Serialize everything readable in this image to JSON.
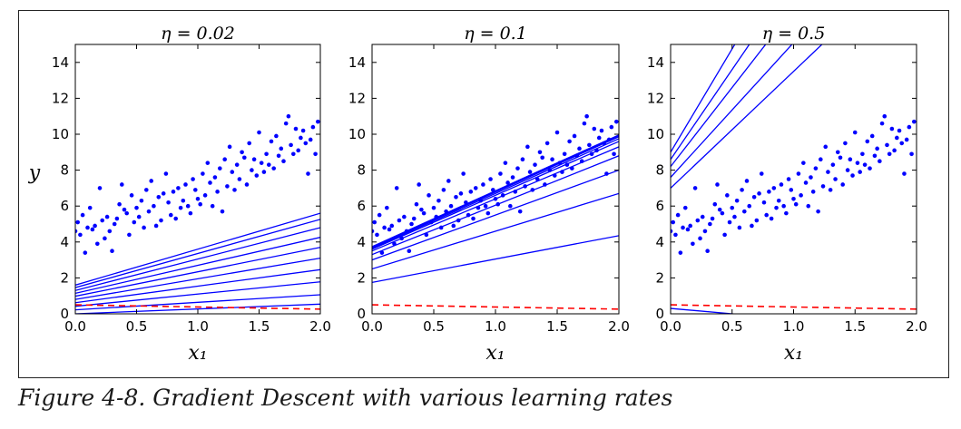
{
  "caption": "Figure 4-8. Gradient Descent with various learning rates",
  "colors": {
    "points": "#0000ff",
    "lines": "#0000ff",
    "prediction": "#ff0000",
    "axes": "#000000"
  },
  "chart_data": [
    {
      "type": "scatter",
      "title": "η = 0.02",
      "xlabel": "x₁",
      "ylabel": "y",
      "xlim": [
        0,
        2
      ],
      "ylim": [
        0,
        15
      ],
      "xticks": [
        "0.0",
        "0.5",
        "1.0",
        "1.5",
        "2.0"
      ],
      "yticks": [
        "0",
        "2",
        "4",
        "6",
        "8",
        "10",
        "12",
        "14"
      ],
      "grid": false,
      "lines": [
        {
          "intercept": 0.0,
          "slope": 0.27
        },
        {
          "intercept": 0.22,
          "slope": 0.42
        },
        {
          "intercept": 0.42,
          "slope": 0.68
        },
        {
          "intercept": 0.62,
          "slope": 0.92
        },
        {
          "intercept": 0.8,
          "slope": 1.15
        },
        {
          "intercept": 0.98,
          "slope": 1.36
        },
        {
          "intercept": 1.14,
          "slope": 1.56
        },
        {
          "intercept": 1.3,
          "slope": 1.75
        },
        {
          "intercept": 1.46,
          "slope": 1.9
        },
        {
          "intercept": 1.6,
          "slope": 2.0
        }
      ],
      "prediction_line": {
        "intercept": 0.5,
        "slope": -0.12
      }
    },
    {
      "type": "scatter",
      "title": "η = 0.1",
      "xlabel": "x₁",
      "ylabel": "",
      "xlim": [
        0,
        2
      ],
      "ylim": [
        0,
        15
      ],
      "xticks": [
        "0.0",
        "0.5",
        "1.0",
        "1.5",
        "2.0"
      ],
      "yticks": [
        "0",
        "2",
        "4",
        "6",
        "8",
        "10",
        "12",
        "14"
      ],
      "grid": false,
      "lines": [
        {
          "intercept": 1.75,
          "slope": 1.3
        },
        {
          "intercept": 2.5,
          "slope": 2.1
        },
        {
          "intercept": 3.0,
          "slope": 2.5
        },
        {
          "intercept": 3.3,
          "slope": 2.75
        },
        {
          "intercept": 3.5,
          "slope": 2.9
        },
        {
          "intercept": 3.6,
          "slope": 3.0
        },
        {
          "intercept": 3.65,
          "slope": 3.05
        },
        {
          "intercept": 3.7,
          "slope": 3.08
        },
        {
          "intercept": 3.72,
          "slope": 3.1
        },
        {
          "intercept": 3.74,
          "slope": 3.11
        }
      ],
      "prediction_line": {
        "intercept": 0.5,
        "slope": -0.12
      }
    },
    {
      "type": "scatter",
      "title": "η = 0.5",
      "xlabel": "x₁",
      "ylabel": "",
      "xlim": [
        0,
        2
      ],
      "ylim": [
        0,
        15
      ],
      "xticks": [
        "0.0",
        "0.5",
        "1.0",
        "1.5",
        "2.0"
      ],
      "yticks": [
        "0",
        "2",
        "4",
        "6",
        "8",
        "10",
        "12",
        "14"
      ],
      "grid": false,
      "lines": [
        {
          "intercept": 0.3,
          "slope": -0.6
        },
        {
          "intercept": 7.0,
          "slope": 6.5
        },
        {
          "intercept": 7.6,
          "slope": 7.5
        },
        {
          "intercept": 8.2,
          "slope": 8.8
        },
        {
          "intercept": 8.6,
          "slope": 10.0
        },
        {
          "intercept": 9.0,
          "slope": 11.5
        }
      ],
      "prediction_line": {
        "intercept": 0.5,
        "slope": -0.12
      }
    }
  ],
  "scatter_points": [
    [
      0.0,
      4.6
    ],
    [
      0.02,
      5.1
    ],
    [
      0.04,
      4.4
    ],
    [
      0.06,
      5.5
    ],
    [
      0.08,
      3.4
    ],
    [
      0.1,
      4.8
    ],
    [
      0.12,
      5.9
    ],
    [
      0.14,
      4.7
    ],
    [
      0.16,
      4.9
    ],
    [
      0.18,
      3.9
    ],
    [
      0.2,
      7.0
    ],
    [
      0.22,
      5.2
    ],
    [
      0.24,
      4.2
    ],
    [
      0.26,
      5.4
    ],
    [
      0.28,
      4.6
    ],
    [
      0.3,
      3.5
    ],
    [
      0.32,
      5.0
    ],
    [
      0.34,
      5.3
    ],
    [
      0.36,
      6.1
    ],
    [
      0.38,
      7.2
    ],
    [
      0.4,
      5.8
    ],
    [
      0.42,
      5.6
    ],
    [
      0.44,
      4.4
    ],
    [
      0.46,
      6.6
    ],
    [
      0.48,
      5.1
    ],
    [
      0.5,
      5.9
    ],
    [
      0.52,
      5.4
    ],
    [
      0.54,
      6.3
    ],
    [
      0.56,
      4.8
    ],
    [
      0.58,
      6.9
    ],
    [
      0.6,
      5.7
    ],
    [
      0.62,
      7.4
    ],
    [
      0.64,
      6.0
    ],
    [
      0.66,
      4.9
    ],
    [
      0.68,
      6.5
    ],
    [
      0.7,
      5.2
    ],
    [
      0.72,
      6.7
    ],
    [
      0.74,
      7.8
    ],
    [
      0.76,
      6.2
    ],
    [
      0.78,
      5.5
    ],
    [
      0.8,
      6.8
    ],
    [
      0.82,
      5.3
    ],
    [
      0.84,
      7.0
    ],
    [
      0.86,
      5.9
    ],
    [
      0.88,
      6.3
    ],
    [
      0.9,
      7.2
    ],
    [
      0.92,
      6.0
    ],
    [
      0.94,
      5.6
    ],
    [
      0.96,
      7.5
    ],
    [
      0.98,
      6.9
    ],
    [
      1.0,
      6.4
    ],
    [
      1.02,
      6.1
    ],
    [
      1.04,
      7.8
    ],
    [
      1.06,
      6.6
    ],
    [
      1.08,
      8.4
    ],
    [
      1.1,
      7.3
    ],
    [
      1.12,
      6.0
    ],
    [
      1.14,
      7.6
    ],
    [
      1.16,
      6.8
    ],
    [
      1.18,
      8.1
    ],
    [
      1.2,
      5.7
    ],
    [
      1.22,
      8.6
    ],
    [
      1.24,
      7.1
    ],
    [
      1.26,
      9.3
    ],
    [
      1.28,
      7.9
    ],
    [
      1.3,
      6.9
    ],
    [
      1.32,
      8.3
    ],
    [
      1.34,
      7.5
    ],
    [
      1.36,
      9.0
    ],
    [
      1.38,
      8.7
    ],
    [
      1.4,
      7.2
    ],
    [
      1.42,
      9.5
    ],
    [
      1.44,
      8.0
    ],
    [
      1.46,
      8.6
    ],
    [
      1.48,
      7.7
    ],
    [
      1.5,
      10.1
    ],
    [
      1.52,
      8.4
    ],
    [
      1.54,
      7.9
    ],
    [
      1.56,
      8.9
    ],
    [
      1.58,
      8.3
    ],
    [
      1.6,
      9.6
    ],
    [
      1.62,
      8.1
    ],
    [
      1.64,
      9.9
    ],
    [
      1.66,
      8.8
    ],
    [
      1.68,
      9.2
    ],
    [
      1.7,
      8.5
    ],
    [
      1.72,
      10.6
    ],
    [
      1.74,
      11.0
    ],
    [
      1.76,
      9.4
    ],
    [
      1.78,
      8.9
    ],
    [
      1.8,
      10.3
    ],
    [
      1.82,
      9.1
    ],
    [
      1.84,
      9.8
    ],
    [
      1.86,
      10.2
    ],
    [
      1.88,
      9.5
    ],
    [
      1.9,
      7.8
    ],
    [
      1.92,
      9.7
    ],
    [
      1.94,
      10.4
    ],
    [
      1.96,
      8.9
    ],
    [
      1.98,
      10.7
    ]
  ]
}
